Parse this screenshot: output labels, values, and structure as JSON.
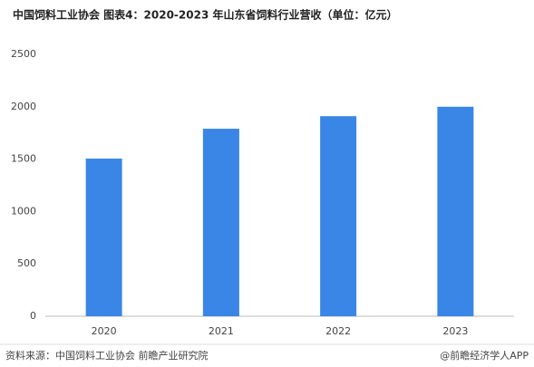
{
  "chart_data": {
    "type": "bar",
    "title": "中国饲料工业协会  图表4：2020-2023 年山东省饲料行业营收（单位：亿元）",
    "categories": [
      "2020",
      "2021",
      "2022",
      "2023"
    ],
    "values": [
      1505,
      1790,
      1910,
      2000
    ],
    "color": "#3a86e6",
    "ylim": [
      0,
      2500
    ],
    "yticks": [
      0,
      500,
      1000,
      1500,
      2000,
      2500
    ],
    "grid": false,
    "source": "资料来源：中国饲料工业协会 前瞻产业研究院",
    "credit": "@前瞻经济学人APP"
  }
}
